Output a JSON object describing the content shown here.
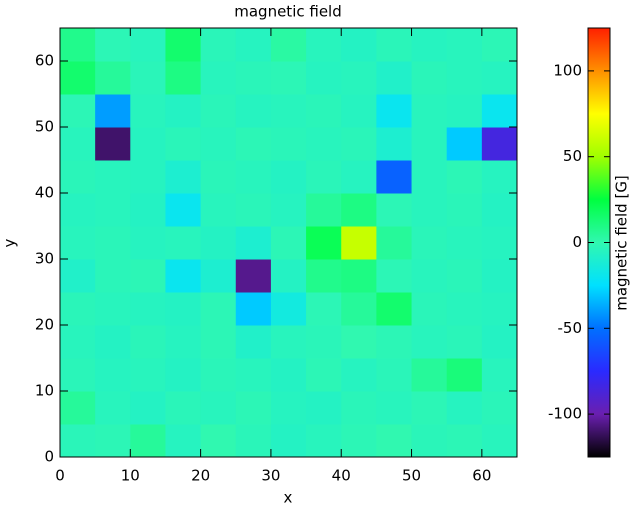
{
  "chart_data": {
    "type": "heatmap",
    "title": "magnetic field",
    "x_label": "x",
    "y_label": "y",
    "colorbar_label": "magnetic field [G]",
    "x_bins": [
      0,
      5,
      10,
      15,
      20,
      25,
      30,
      35,
      40,
      45,
      50,
      55,
      60,
      65
    ],
    "y_bins": [
      0,
      5,
      10,
      15,
      20,
      25,
      30,
      35,
      40,
      45,
      50,
      55,
      60,
      65
    ],
    "xlim": [
      0,
      65
    ],
    "ylim": [
      0,
      65
    ],
    "xticks": [
      0,
      10,
      20,
      30,
      40,
      50,
      60
    ],
    "yticks": [
      0,
      10,
      20,
      30,
      40,
      50,
      60
    ],
    "zlim": [
      -125,
      125
    ],
    "zticks": [
      -100,
      -50,
      0,
      50,
      100
    ],
    "colormap": [
      "#000000",
      "#6a1fb0",
      "#2a2aff",
      "#0070ff",
      "#00e0ff",
      "#30f8b0",
      "#00ff40",
      "#a0ff00",
      "#ffff00",
      "#ff9000",
      "#ff2000"
    ],
    "z": [
      [
        -3,
        -2,
        5,
        -5,
        0,
        -3,
        -6,
        -4,
        -2,
        0,
        -3,
        -2,
        -4
      ],
      [
        5,
        -4,
        -6,
        -3,
        -4,
        -2,
        -5,
        -6,
        -3,
        -4,
        -2,
        -5,
        -3
      ],
      [
        -3,
        -5,
        -4,
        -6,
        -3,
        -4,
        -6,
        -2,
        -5,
        -3,
        5,
        12,
        -4
      ],
      [
        -4,
        -6,
        -3,
        -5,
        -2,
        -8,
        -4,
        -3,
        0,
        -2,
        -4,
        -3,
        -6
      ],
      [
        -3,
        -4,
        -5,
        -6,
        -2,
        -30,
        -15,
        -2,
        5,
        15,
        -3,
        -4,
        -5
      ],
      [
        -8,
        -3,
        -2,
        -20,
        -10,
        -105,
        -6,
        8,
        10,
        -2,
        -4,
        -3,
        -6
      ],
      [
        -4,
        -3,
        -5,
        -4,
        -6,
        -10,
        -2,
        20,
        60,
        5,
        -3,
        -4,
        -5
      ],
      [
        -5,
        -4,
        -6,
        -20,
        -4,
        -3,
        -5,
        5,
        10,
        -2,
        -4,
        -3,
        -6
      ],
      [
        -3,
        -4,
        -5,
        -10,
        -3,
        -4,
        -6,
        -3,
        -5,
        -55,
        -4,
        -2,
        -5
      ],
      [
        -4,
        -110,
        -5,
        -3,
        -4,
        -2,
        -3,
        -4,
        -3,
        -10,
        -4,
        -30,
        -85
      ],
      [
        -2,
        -40,
        -4,
        -6,
        -3,
        -5,
        -4,
        -3,
        -5,
        -20,
        -4,
        -5,
        -20
      ],
      [
        15,
        5,
        -3,
        10,
        -4,
        -3,
        -2,
        -5,
        -4,
        -8,
        -3,
        -4,
        -5
      ],
      [
        8,
        -2,
        -4,
        15,
        -3,
        -5,
        3,
        -4,
        -6,
        -3,
        -5,
        -4,
        -2
      ]
    ]
  }
}
